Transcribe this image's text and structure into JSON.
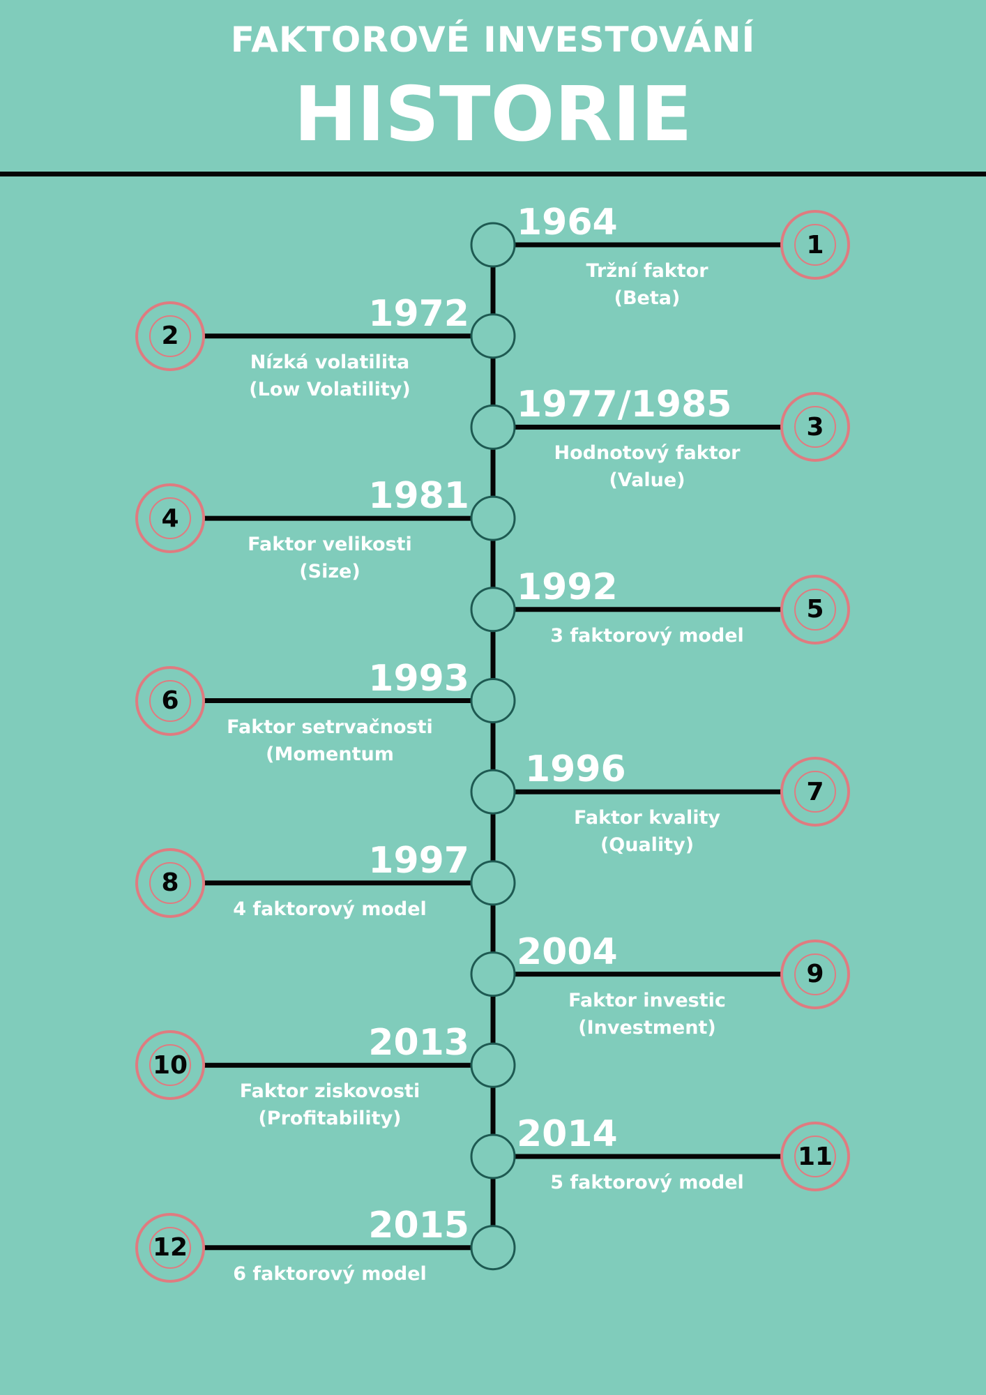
{
  "header": {
    "subtitle": "FAKTOROVÉ INVESTOVÁNÍ",
    "title": "HISTORIE"
  },
  "colors": {
    "background": "#80ccbb",
    "line": "#050505",
    "node_stroke": "#1e5a52",
    "badge_ring": "#df7b80",
    "text": "#ffffff"
  },
  "events": [
    {
      "number": "1",
      "year": "1964",
      "side": "right",
      "label_lines": [
        "Tržní faktor",
        "(Beta)"
      ]
    },
    {
      "number": "2",
      "year": "1972",
      "side": "left",
      "label_lines": [
        "Nízká volatilita",
        "(Low Volatility)"
      ]
    },
    {
      "number": "3",
      "year": "1977/1985",
      "side": "right",
      "label_lines": [
        "Hodnotový faktor",
        "(Value)"
      ]
    },
    {
      "number": "4",
      "year": "1981",
      "side": "left",
      "label_lines": [
        "Faktor velikosti",
        "(Size)"
      ]
    },
    {
      "number": "5",
      "year": "1992",
      "side": "right",
      "label_lines": [
        "3 faktorový model"
      ]
    },
    {
      "number": "6",
      "year": "1993",
      "side": "left",
      "label_lines": [
        "Faktor setrvačnosti",
        "(Momentum"
      ]
    },
    {
      "number": "7",
      "year": "1996",
      "side": "right",
      "label_lines": [
        "Faktor kvality",
        "(Quality)"
      ]
    },
    {
      "number": "8",
      "year": "1997",
      "side": "left",
      "label_lines": [
        "4 faktorový model"
      ]
    },
    {
      "number": "9",
      "year": "2004",
      "side": "right",
      "label_lines": [
        "Faktor investic",
        "(Investment)"
      ]
    },
    {
      "number": "10",
      "year": "2013",
      "side": "left",
      "label_lines": [
        "Faktor ziskovosti",
        "(Profitability)"
      ]
    },
    {
      "number": "11",
      "year": "2014",
      "side": "right",
      "label_lines": [
        "5 faktorový model"
      ]
    },
    {
      "number": "12",
      "year": "2015",
      "side": "left",
      "label_lines": [
        "6 faktorový model"
      ]
    }
  ]
}
